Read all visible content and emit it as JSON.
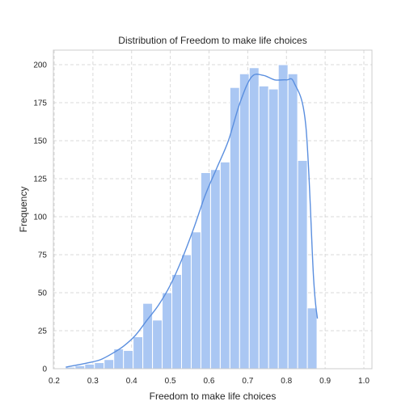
{
  "chart_data": {
    "type": "histogram",
    "title": "Distribution of Freedom to make life choices",
    "xlabel": "Freedom to make life choices",
    "ylabel": "Frequency",
    "xlim": [
      0.2,
      1.0
    ],
    "ylim": [
      0,
      210
    ],
    "xticks": [
      "0.2",
      "0.3",
      "0.4",
      "0.5",
      "0.6",
      "0.7",
      "0.8",
      "0.9",
      "1.0"
    ],
    "yticks": [
      "0",
      "25",
      "50",
      "75",
      "100",
      "125",
      "150",
      "175",
      "200"
    ],
    "grid": true,
    "bar_color": "#aac7f3",
    "kde_color": "#5b8fdf",
    "bins": [
      {
        "x0": 0.229,
        "x1": 0.254,
        "count": 1
      },
      {
        "x0": 0.254,
        "x1": 0.279,
        "count": 2
      },
      {
        "x0": 0.279,
        "x1": 0.304,
        "count": 3
      },
      {
        "x0": 0.304,
        "x1": 0.329,
        "count": 4
      },
      {
        "x0": 0.329,
        "x1": 0.354,
        "count": 6
      },
      {
        "x0": 0.354,
        "x1": 0.379,
        "count": 13
      },
      {
        "x0": 0.379,
        "x1": 0.404,
        "count": 12
      },
      {
        "x0": 0.404,
        "x1": 0.429,
        "count": 21
      },
      {
        "x0": 0.429,
        "x1": 0.454,
        "count": 43
      },
      {
        "x0": 0.454,
        "x1": 0.479,
        "count": 32
      },
      {
        "x0": 0.479,
        "x1": 0.504,
        "count": 50
      },
      {
        "x0": 0.504,
        "x1": 0.529,
        "count": 62
      },
      {
        "x0": 0.529,
        "x1": 0.554,
        "count": 75
      },
      {
        "x0": 0.554,
        "x1": 0.579,
        "count": 90
      },
      {
        "x0": 0.579,
        "x1": 0.604,
        "count": 129
      },
      {
        "x0": 0.604,
        "x1": 0.629,
        "count": 131
      },
      {
        "x0": 0.629,
        "x1": 0.654,
        "count": 136
      },
      {
        "x0": 0.654,
        "x1": 0.679,
        "count": 185
      },
      {
        "x0": 0.679,
        "x1": 0.704,
        "count": 194
      },
      {
        "x0": 0.704,
        "x1": 0.729,
        "count": 198
      },
      {
        "x0": 0.729,
        "x1": 0.754,
        "count": 186
      },
      {
        "x0": 0.754,
        "x1": 0.779,
        "count": 184
      },
      {
        "x0": 0.779,
        "x1": 0.804,
        "count": 200
      },
      {
        "x0": 0.804,
        "x1": 0.829,
        "count": 194
      },
      {
        "x0": 0.829,
        "x1": 0.854,
        "count": 137
      },
      {
        "x0": 0.854,
        "x1": 0.879,
        "count": 40
      }
    ],
    "kde": {
      "x": [
        0.23,
        0.26,
        0.29,
        0.32,
        0.35,
        0.38,
        0.41,
        0.44,
        0.47,
        0.5,
        0.53,
        0.56,
        0.59,
        0.62,
        0.65,
        0.68,
        0.71,
        0.74,
        0.77,
        0.8,
        0.82,
        0.85,
        0.87,
        0.88
      ],
      "y": [
        1,
        2.5,
        4,
        6,
        10,
        15,
        22,
        32,
        42,
        55,
        72,
        92,
        114,
        132,
        150,
        175,
        192,
        193,
        190,
        190,
        188,
        160,
        60,
        33
      ]
    }
  }
}
